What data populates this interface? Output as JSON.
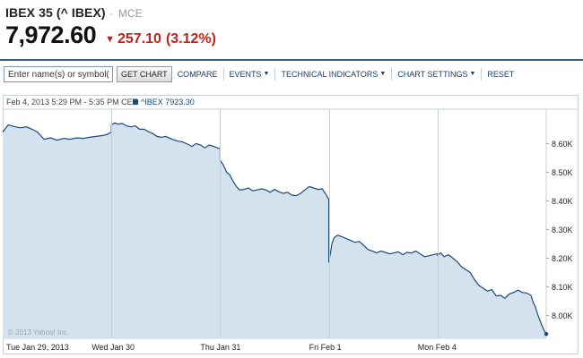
{
  "quote": {
    "name": "IBEX 35 (^ IBEX)",
    "separator": "-",
    "exchange": "MCE",
    "last_price": "7,972.60",
    "change": "257.10",
    "change_pct": "(3.12%)",
    "direction_icon": "down-arrow-icon",
    "change_color": "#c0231a"
  },
  "toolbar": {
    "search_placeholder": "Enter name(s) or symbol(s)",
    "get_chart": "GET CHART",
    "compare": "COMPARE",
    "events": "EVENTS",
    "technical_indicators": "TECHNICAL INDICATORS",
    "chart_settings": "CHART SETTINGS",
    "reset": "RESET"
  },
  "chart_data": {
    "type": "area",
    "title": "",
    "interval_label": "Feb 4, 2013 5:29 PM - 5:35 PM CET:",
    "legend": [
      {
        "symbol": "^IBEX",
        "value": "7923.30",
        "color": "#1b4a7a"
      }
    ],
    "xlabel": "",
    "ylabel": "",
    "ylim": [
      7920,
      8720
    ],
    "yticks": [
      8000,
      8100,
      8200,
      8300,
      8400,
      8500,
      8600
    ],
    "ytick_labels": [
      "8.00K",
      "8.10K",
      "8.20K",
      "8.30K",
      "8.40K",
      "8.50K",
      "8.60K"
    ],
    "x_sessions": [
      {
        "label": "Tue Jan 29, 2013"
      },
      {
        "label": "Wed Jan 30"
      },
      {
        "label": "Thu Jan 31"
      },
      {
        "label": "Fri Feb 1"
      },
      {
        "label": "Mon Feb 4"
      }
    ],
    "grid": {
      "vertical": true,
      "horizontal": false
    },
    "watermark": "© 2013 Yahoo! Inc.",
    "series": [
      {
        "points": [
          [
            0.0,
            8640
          ],
          [
            0.05,
            8665
          ],
          [
            0.1,
            8660
          ],
          [
            0.16,
            8655
          ],
          [
            0.22,
            8658
          ],
          [
            0.27,
            8650
          ],
          [
            0.32,
            8640
          ],
          [
            0.38,
            8615
          ],
          [
            0.44,
            8620
          ],
          [
            0.5,
            8612
          ],
          [
            0.56,
            8618
          ],
          [
            0.62,
            8615
          ],
          [
            0.68,
            8620
          ],
          [
            0.74,
            8618
          ],
          [
            0.8,
            8622
          ],
          [
            0.86,
            8625
          ],
          [
            0.92,
            8628
          ],
          [
            0.96,
            8632
          ],
          [
            1.0,
            8640
          ],
          [
            1.0,
            8665
          ],
          [
            1.03,
            8672
          ],
          [
            1.06,
            8668
          ],
          [
            1.1,
            8670
          ],
          [
            1.14,
            8662
          ],
          [
            1.18,
            8658
          ],
          [
            1.22,
            8662
          ],
          [
            1.26,
            8650
          ],
          [
            1.3,
            8650
          ],
          [
            1.34,
            8642
          ],
          [
            1.38,
            8635
          ],
          [
            1.42,
            8625
          ],
          [
            1.46,
            8622
          ],
          [
            1.5,
            8625
          ],
          [
            1.54,
            8618
          ],
          [
            1.58,
            8612
          ],
          [
            1.62,
            8608
          ],
          [
            1.66,
            8605
          ],
          [
            1.7,
            8598
          ],
          [
            1.74,
            8590
          ],
          [
            1.78,
            8600
          ],
          [
            1.82,
            8595
          ],
          [
            1.86,
            8585
          ],
          [
            1.9,
            8595
          ],
          [
            1.94,
            8590
          ],
          [
            2.0,
            8582
          ],
          [
            2.0,
            8542
          ],
          [
            2.03,
            8525
          ],
          [
            2.06,
            8500
          ],
          [
            2.09,
            8490
          ],
          [
            2.12,
            8468
          ],
          [
            2.15,
            8450
          ],
          [
            2.18,
            8438
          ],
          [
            2.22,
            8440
          ],
          [
            2.26,
            8445
          ],
          [
            2.3,
            8435
          ],
          [
            2.34,
            8438
          ],
          [
            2.38,
            8442
          ],
          [
            2.42,
            8438
          ],
          [
            2.46,
            8430
          ],
          [
            2.5,
            8440
          ],
          [
            2.54,
            8432
          ],
          [
            2.58,
            8426
          ],
          [
            2.62,
            8430
          ],
          [
            2.66,
            8420
          ],
          [
            2.7,
            8418
          ],
          [
            2.74,
            8426
          ],
          [
            2.78,
            8438
          ],
          [
            2.82,
            8450
          ],
          [
            2.86,
            8445
          ],
          [
            2.9,
            8440
          ],
          [
            2.94,
            8442
          ],
          [
            2.97,
            8425
          ],
          [
            3.0,
            8405
          ],
          [
            3.0,
            8185
          ],
          [
            3.03,
            8252
          ],
          [
            3.05,
            8272
          ],
          [
            3.08,
            8280
          ],
          [
            3.12,
            8275
          ],
          [
            3.16,
            8268
          ],
          [
            3.2,
            8262
          ],
          [
            3.24,
            8255
          ],
          [
            3.28,
            8258
          ],
          [
            3.32,
            8245
          ],
          [
            3.36,
            8230
          ],
          [
            3.4,
            8225
          ],
          [
            3.44,
            8218
          ],
          [
            3.48,
            8225
          ],
          [
            3.52,
            8220
          ],
          [
            3.56,
            8215
          ],
          [
            3.6,
            8218
          ],
          [
            3.64,
            8222
          ],
          [
            3.68,
            8212
          ],
          [
            3.72,
            8220
          ],
          [
            3.76,
            8218
          ],
          [
            3.8,
            8225
          ],
          [
            3.84,
            8215
          ],
          [
            3.88,
            8205
          ],
          [
            3.92,
            8208
          ],
          [
            3.96,
            8212
          ],
          [
            4.0,
            8215
          ],
          [
            4.0,
            8210
          ],
          [
            4.03,
            8218
          ],
          [
            4.06,
            8205
          ],
          [
            4.1,
            8212
          ],
          [
            4.14,
            8200
          ],
          [
            4.18,
            8188
          ],
          [
            4.22,
            8170
          ],
          [
            4.26,
            8160
          ],
          [
            4.3,
            8150
          ],
          [
            4.34,
            8125
          ],
          [
            4.38,
            8105
          ],
          [
            4.42,
            8095
          ],
          [
            4.46,
            8085
          ],
          [
            4.5,
            8090
          ],
          [
            4.54,
            8068
          ],
          [
            4.58,
            8070
          ],
          [
            4.62,
            8060
          ],
          [
            4.66,
            8075
          ],
          [
            4.7,
            8080
          ],
          [
            4.74,
            8088
          ],
          [
            4.78,
            8080
          ],
          [
            4.82,
            8078
          ],
          [
            4.86,
            8070
          ],
          [
            4.88,
            8045
          ],
          [
            4.9,
            8030
          ],
          [
            4.92,
            8005
          ],
          [
            4.94,
            7985
          ],
          [
            4.96,
            7965
          ],
          [
            4.98,
            7948
          ],
          [
            5.0,
            7935
          ]
        ],
        "line_color": "#1b4a7a",
        "fill_color": "#d4e2ee"
      }
    ]
  }
}
